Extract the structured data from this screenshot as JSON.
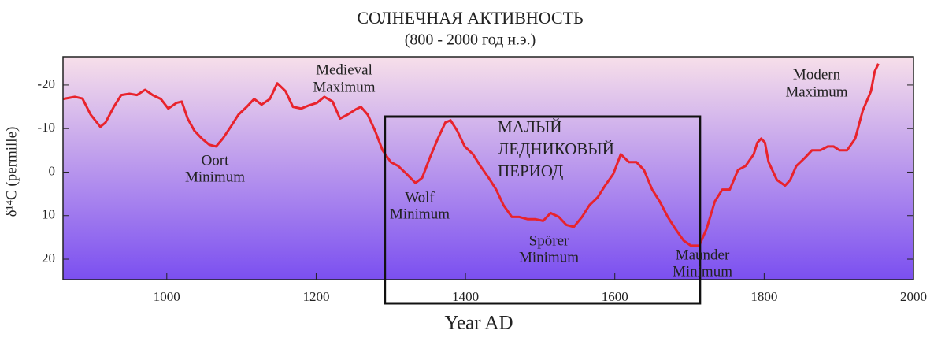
{
  "chart_data": {
    "type": "line",
    "title": "СОЛНЕЧНАЯ АКТИВНОСТЬ",
    "subtitle": "(800 - 2000 год н.э.)",
    "x_label": "Year AD",
    "y_label": "δ¹⁴C (permille)",
    "xlim": [
      861,
      2000
    ],
    "ylim": [
      -26.5,
      24.7
    ],
    "y_inverted": true,
    "xticks": [
      1000,
      1200,
      1400,
      1600,
      1800,
      2000
    ],
    "yticks": [
      -20,
      -10,
      0,
      10,
      20
    ],
    "background_gradient": [
      "#f7dfea",
      "#7b4ff0"
    ],
    "series": [
      {
        "color": "#e8232c",
        "x": [
          861,
          877,
          887,
          898,
          911,
          918,
          929,
          939,
          950,
          960,
          971,
          981,
          992,
          1002,
          1013,
          1020,
          1028,
          1037,
          1047,
          1057,
          1066,
          1075,
          1086,
          1096,
          1107,
          1117,
          1127,
          1138,
          1148,
          1159,
          1169,
          1180,
          1190,
          1201,
          1211,
          1222,
          1232,
          1242,
          1253,
          1260,
          1269,
          1279,
          1289,
          1300,
          1310,
          1321,
          1333,
          1342,
          1352,
          1363,
          1373,
          1380,
          1389,
          1399,
          1410,
          1420,
          1431,
          1441,
          1451,
          1462,
          1472,
          1483,
          1493,
          1504,
          1514,
          1525,
          1535,
          1545,
          1556,
          1566,
          1577,
          1587,
          1598,
          1608,
          1619,
          1629,
          1639,
          1650,
          1660,
          1671,
          1681,
          1692,
          1702,
          1713,
          1723,
          1734,
          1744,
          1754,
          1765,
          1775,
          1786,
          1791,
          1796,
          1801,
          1806,
          1817,
          1828,
          1835,
          1843,
          1854,
          1864,
          1875,
          1885,
          1893,
          1901,
          1911,
          1922,
          1932,
          1943,
          1948,
          1953
        ],
        "values": [
          -16.8,
          -17.3,
          -16.9,
          -13.2,
          -10.4,
          -11.4,
          -15.0,
          -17.7,
          -18.0,
          -17.7,
          -18.9,
          -17.7,
          -16.8,
          -14.6,
          -15.9,
          -16.2,
          -12.3,
          -9.5,
          -7.7,
          -6.3,
          -5.9,
          -7.7,
          -10.5,
          -13.2,
          -15.0,
          -16.8,
          -15.5,
          -16.8,
          -20.4,
          -18.6,
          -15.0,
          -14.6,
          -15.3,
          -15.9,
          -17.3,
          -16.2,
          -12.3,
          -13.2,
          -14.4,
          -15.0,
          -13.2,
          -9.5,
          -5.0,
          -2.3,
          -1.4,
          0.4,
          2.5,
          1.3,
          -3.2,
          -7.7,
          -11.4,
          -11.9,
          -9.5,
          -5.9,
          -4.1,
          -1.4,
          1.3,
          4.0,
          7.6,
          10.3,
          10.3,
          10.8,
          10.8,
          11.2,
          9.4,
          10.3,
          12.1,
          12.6,
          10.3,
          7.6,
          5.8,
          3.1,
          0.4,
          -4.1,
          -2.3,
          -2.3,
          -0.5,
          4.0,
          6.7,
          10.3,
          13.0,
          15.7,
          16.9,
          16.9,
          13.0,
          6.7,
          4.0,
          4.0,
          -0.5,
          -1.4,
          -4.1,
          -6.8,
          -7.7,
          -6.8,
          -2.3,
          1.8,
          3.1,
          1.8,
          -1.4,
          -3.2,
          -5.0,
          -5.0,
          -5.9,
          -5.9,
          -5.0,
          -5.0,
          -7.7,
          -14.1,
          -18.6,
          -23.1,
          -24.9
        ]
      }
    ],
    "box": {
      "x": [
        1292,
        1714
      ]
    },
    "annotations": [
      {
        "lines": [
          "Medieval",
          "Maximum"
        ]
      },
      {
        "lines": [
          "Oort",
          "Minimum"
        ]
      },
      {
        "lines": [
          "Wolf",
          "Minimum"
        ]
      },
      {
        "lines": [
          "МАЛЫЙ",
          "ЛЕДНИКОВЫЙ",
          "ПЕРИОД"
        ]
      },
      {
        "lines": [
          "Spörer",
          "Minimum"
        ]
      },
      {
        "lines": [
          "Maunder",
          "Minimum"
        ]
      },
      {
        "lines": [
          "Modern",
          "Maximum"
        ]
      }
    ]
  }
}
